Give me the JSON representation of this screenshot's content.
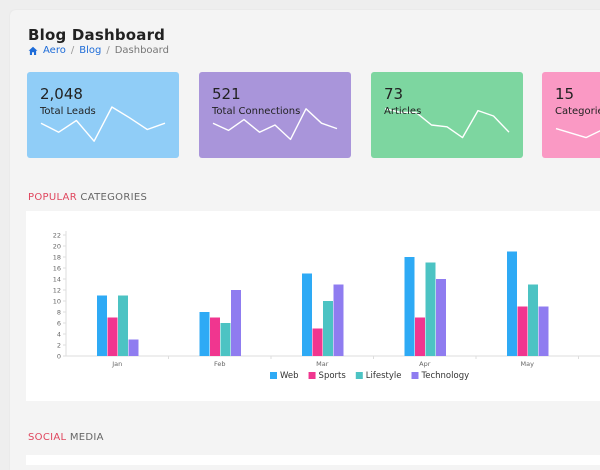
{
  "header": {
    "title": "Blog Dashboard",
    "breadcrumb": {
      "home": "Aero",
      "section": "Blog",
      "current": "Dashboard",
      "separator": "/"
    }
  },
  "cards": [
    {
      "value": "2,048",
      "label": "Total Leads",
      "color": "#90cdf7",
      "spark": [
        3.2,
        2.2,
        3.5,
        1.2,
        5.0,
        3.8,
        2.5,
        3.2
      ]
    },
    {
      "value": "521",
      "label": "Total Connections",
      "color": "#a995da",
      "spark": [
        3.2,
        2.4,
        3.6,
        2.2,
        3.0,
        1.4,
        4.8,
        3.2,
        2.6
      ]
    },
    {
      "value": "73",
      "label": "Articles",
      "color": "#7dd6a0",
      "spark": [
        4.8,
        4.4,
        4.4,
        3.0,
        2.8,
        1.6,
        4.6,
        4.0,
        2.2
      ]
    },
    {
      "value": "15",
      "label": "Categories",
      "color": "#fa99c4",
      "spark": [
        2.6,
        1.6,
        3.2
      ]
    }
  ],
  "sections": {
    "popular": {
      "highlight": "POPULAR",
      "rest": " CATEGORIES"
    },
    "social": {
      "highlight": "SOCIAL",
      "rest": " MEDIA"
    }
  },
  "chart_data": {
    "type": "bar",
    "categories": [
      "Jan",
      "Feb",
      "Mar",
      "Apr",
      "May"
    ],
    "yticks": [
      0,
      2,
      4,
      6,
      8,
      10,
      12,
      14,
      16,
      18,
      20,
      22
    ],
    "ylim": [
      0,
      22
    ],
    "grid": false,
    "legend_position": "bottom",
    "series": [
      {
        "name": "Web",
        "color": "#2eaaf5",
        "values": [
          11,
          8,
          15,
          18,
          19
        ]
      },
      {
        "name": "Sports",
        "color": "#f0368f",
        "values": [
          7,
          7,
          5,
          7,
          9
        ]
      },
      {
        "name": "Lifestyle",
        "color": "#4cc3c3",
        "values": [
          11,
          6,
          10,
          17,
          13
        ]
      },
      {
        "name": "Technology",
        "color": "#8f7cf0",
        "values": [
          3,
          12,
          13,
          14,
          9
        ]
      }
    ]
  }
}
